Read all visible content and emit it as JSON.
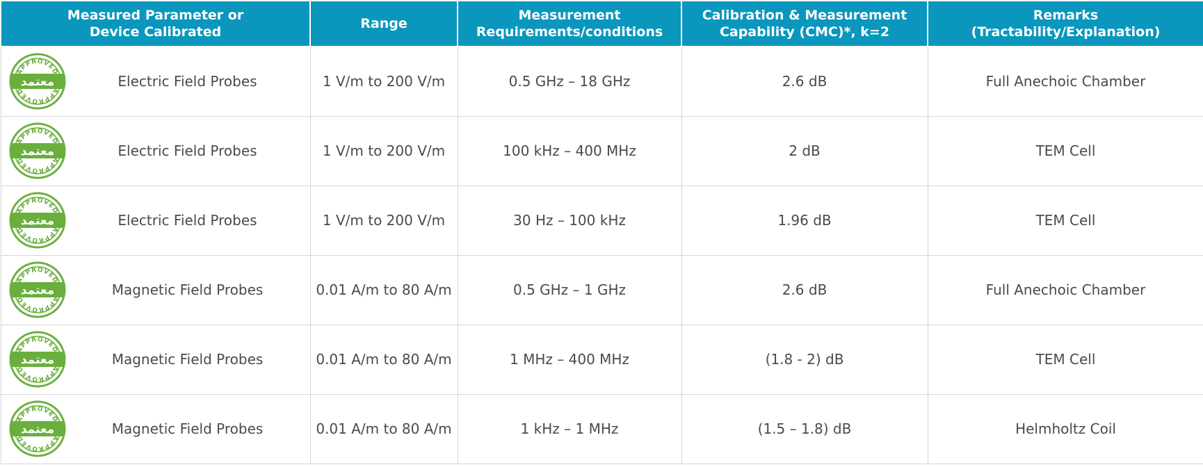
{
  "table": {
    "headers": [
      {
        "line1": "Measured Parameter or",
        "line2": "Device Calibrated"
      },
      {
        "line1": "Range",
        "line2": ""
      },
      {
        "line1": "Measurement",
        "line2": "Requirements/conditions"
      },
      {
        "line1": "Calibration & Measurement",
        "line2": "Capability (CMC)*, k=2"
      },
      {
        "line1": "Remarks",
        "line2": "(Tractability/Explanation)"
      }
    ],
    "badge": {
      "top_text": "APPROVED",
      "bottom_text": "APPROVED",
      "arabic_text": "معتمد",
      "color": "#6aaf3d"
    },
    "rows": [
      {
        "parameter": "Electric Field Probes",
        "range": "1 V/m to 200 V/m",
        "conditions": "0.5 GHz – 18 GHz",
        "cmc": "2.6 dB",
        "remarks": "Full Anechoic Chamber"
      },
      {
        "parameter": "Electric Field Probes",
        "range": "1 V/m to 200 V/m",
        "conditions": "100 kHz – 400 MHz",
        "cmc": "2 dB",
        "remarks": "TEM Cell"
      },
      {
        "parameter": "Electric Field Probes",
        "range": "1 V/m to 200 V/m",
        "conditions": "30 Hz – 100 kHz",
        "cmc": "1.96 dB",
        "remarks": "TEM Cell"
      },
      {
        "parameter": "Magnetic Field Probes",
        "range": "0.01 A/m to 80 A/m",
        "conditions": "0.5 GHz – 1 GHz",
        "cmc": "2.6 dB",
        "remarks": "Full Anechoic Chamber"
      },
      {
        "parameter": "Magnetic Field Probes",
        "range": "0.01 A/m to 80 A/m",
        "conditions": "1 MHz – 400 MHz",
        "cmc": "(1.8 - 2) dB",
        "remarks": "TEM Cell"
      },
      {
        "parameter": "Magnetic Field Probes",
        "range": "0.01 A/m to 80 A/m",
        "conditions": "1 kHz – 1 MHz",
        "cmc": "(1.5 – 1.8) dB",
        "remarks": "Helmholtz Coil"
      }
    ]
  }
}
